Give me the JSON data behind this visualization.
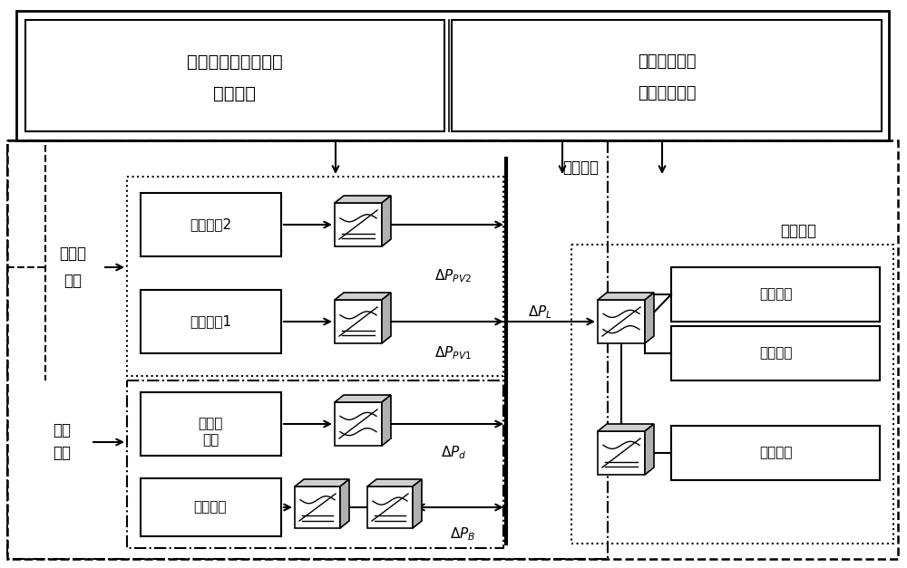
{
  "bg_color": "#ffffff",
  "line_color": "#000000",
  "fig_width": 10.0,
  "fig_height": 6.27,
  "top_box_text1_line1": "自适应鲁棒频率协调",
  "top_box_text1_line2": "控制策略",
  "top_box_text2_line1": "自适应滑模负",
  "top_box_text2_line2": "荷频率控制器",
  "ac_bus_label": "交流母线",
  "multi_pv_label1": "多光伏",
  "multi_pv_label2": "系统",
  "pv2_label": "光伏系统2",
  "pv1_label": "光伏系统1",
  "diesel_storage_label1": "柴储",
  "diesel_storage_label2": "系统",
  "diesel_label1": "柴油机",
  "diesel_label2": "系统",
  "storage_label": "储能系统",
  "multi_load_label": "多种负荷",
  "ev_label": "电动汽车",
  "ac_load_label": "交流负载",
  "dc_load_label": "直流负载"
}
